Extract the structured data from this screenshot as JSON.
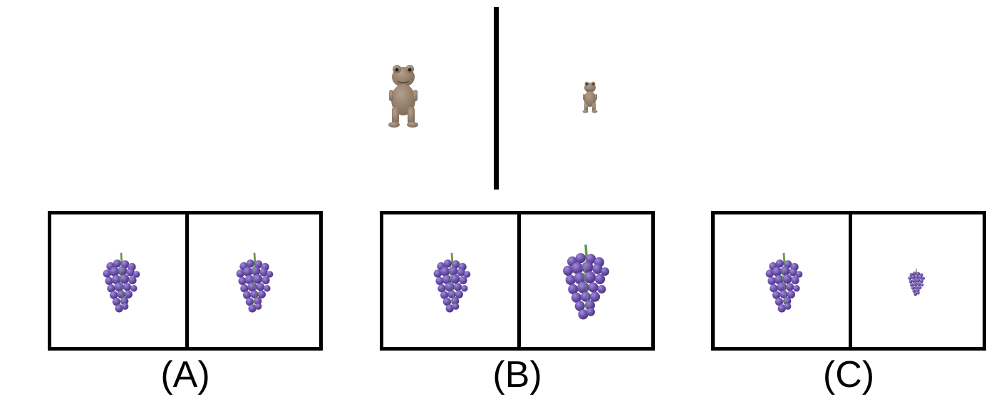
{
  "figure": {
    "reference": {
      "left_object": "dinosaur-figure",
      "right_object": "dinosaur-figure-small"
    },
    "options": [
      {
        "label": "(A)",
        "left_object": "grapes",
        "right_object": "grapes",
        "right_scale": "same"
      },
      {
        "label": "(B)",
        "left_object": "grapes",
        "right_object": "grapes",
        "right_scale": "larger"
      },
      {
        "label": "(C)",
        "left_object": "grapes",
        "right_object": "grapes",
        "right_scale": "smaller"
      }
    ],
    "colors": {
      "grape": "#6a4fa8",
      "grape_highlight": "#8c73c9",
      "stem": "#6a9a4a",
      "dino": "#9b8470",
      "frame": "#000000"
    }
  }
}
